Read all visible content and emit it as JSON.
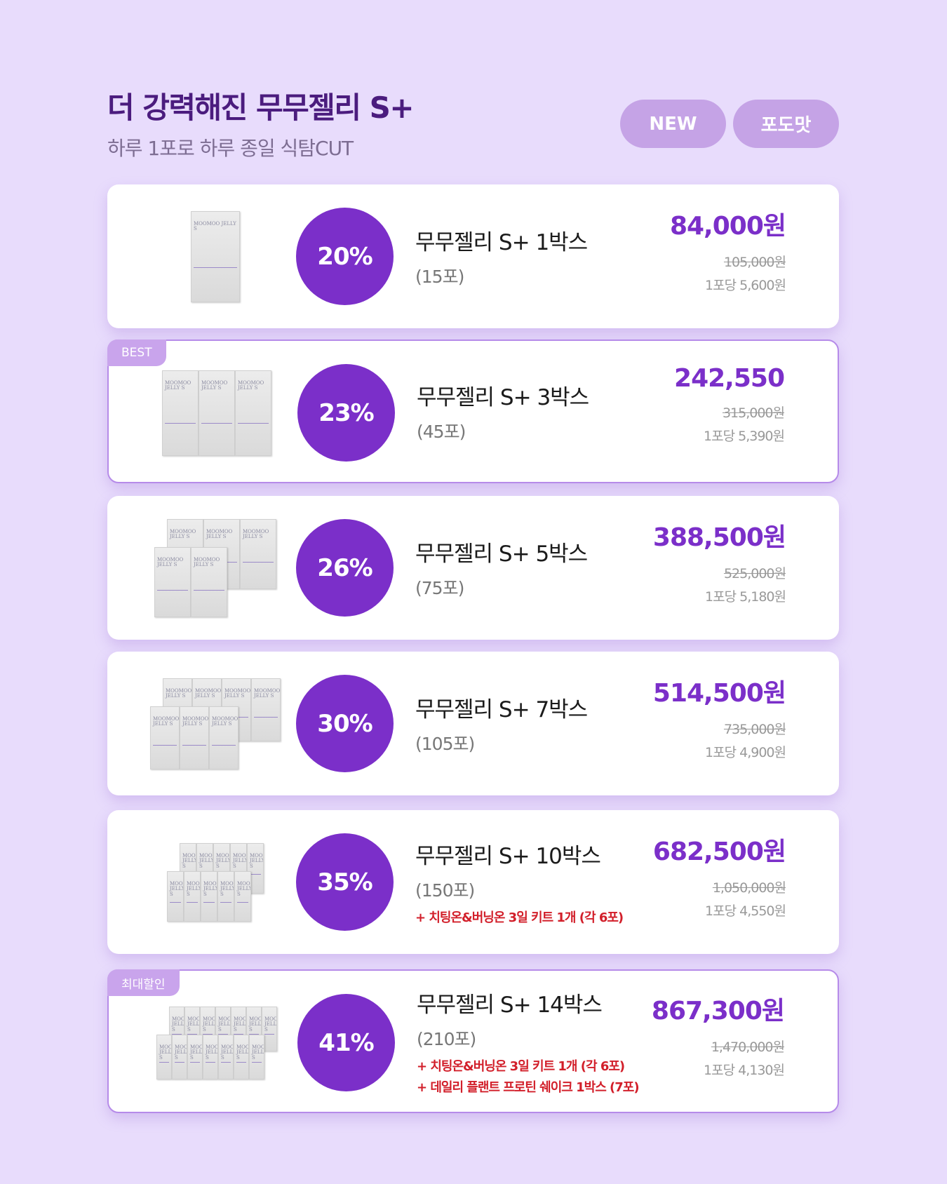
{
  "header": {
    "title": "더 강력해진 무무젤리 S+",
    "subtitle": "하루 1포로 하루 종일 식탐CUT",
    "badges": [
      "NEW",
      "포도맛"
    ]
  },
  "product_box_label": "MOOMOO JELLY S",
  "colors": {
    "background": "#e8dcfc",
    "accent": "#7b2fc9",
    "badge": "#c5a3e6",
    "extra": "#d21f2a"
  },
  "products": [
    {
      "boxes": 1,
      "discount": "20%",
      "name": "무무젤리 S+ 1박스",
      "count": "(15포)",
      "extras": [],
      "price": "84,000원",
      "original": "105,000원",
      "per_unit": "1포당 5,600원",
      "tag": "",
      "highlight": false
    },
    {
      "boxes": 3,
      "discount": "23%",
      "name": "무무젤리 S+ 3박스",
      "count": "(45포)",
      "extras": [],
      "price": "242,550",
      "original": "315,000원",
      "per_unit": "1포당 5,390원",
      "tag": "BEST",
      "highlight": true
    },
    {
      "boxes": 5,
      "discount": "26%",
      "name": "무무젤리 S+ 5박스",
      "count": "(75포)",
      "extras": [],
      "price": "388,500원",
      "original": "525,000원",
      "per_unit": "1포당 5,180원",
      "tag": "",
      "highlight": false
    },
    {
      "boxes": 7,
      "discount": "30%",
      "name": "무무젤리 S+ 7박스",
      "count": "(105포)",
      "extras": [],
      "price": "514,500원",
      "original": "735,000원",
      "per_unit": "1포당 4,900원",
      "tag": "",
      "highlight": false
    },
    {
      "boxes": 10,
      "discount": "35%",
      "name": "무무젤리 S+ 10박스",
      "count": "(150포)",
      "extras": [
        "+ 치팅온&버닝온 3일 키트 1개 (각 6포)"
      ],
      "price": "682,500원",
      "original": "1,050,000원",
      "per_unit": "1포당 4,550원",
      "tag": "",
      "highlight": false
    },
    {
      "boxes": 14,
      "discount": "41%",
      "name": "무무젤리 S+ 14박스",
      "count": "(210포)",
      "extras": [
        "+ 치팅온&버닝온 3일 키트 1개 (각 6포)",
        "+ 데일리 플랜트 프로틴 쉐이크 1박스 (7포)"
      ],
      "price": "867,300원",
      "original": "1,470,000원",
      "per_unit": "1포당 4,130원",
      "tag": "최대할인",
      "highlight": true
    }
  ]
}
